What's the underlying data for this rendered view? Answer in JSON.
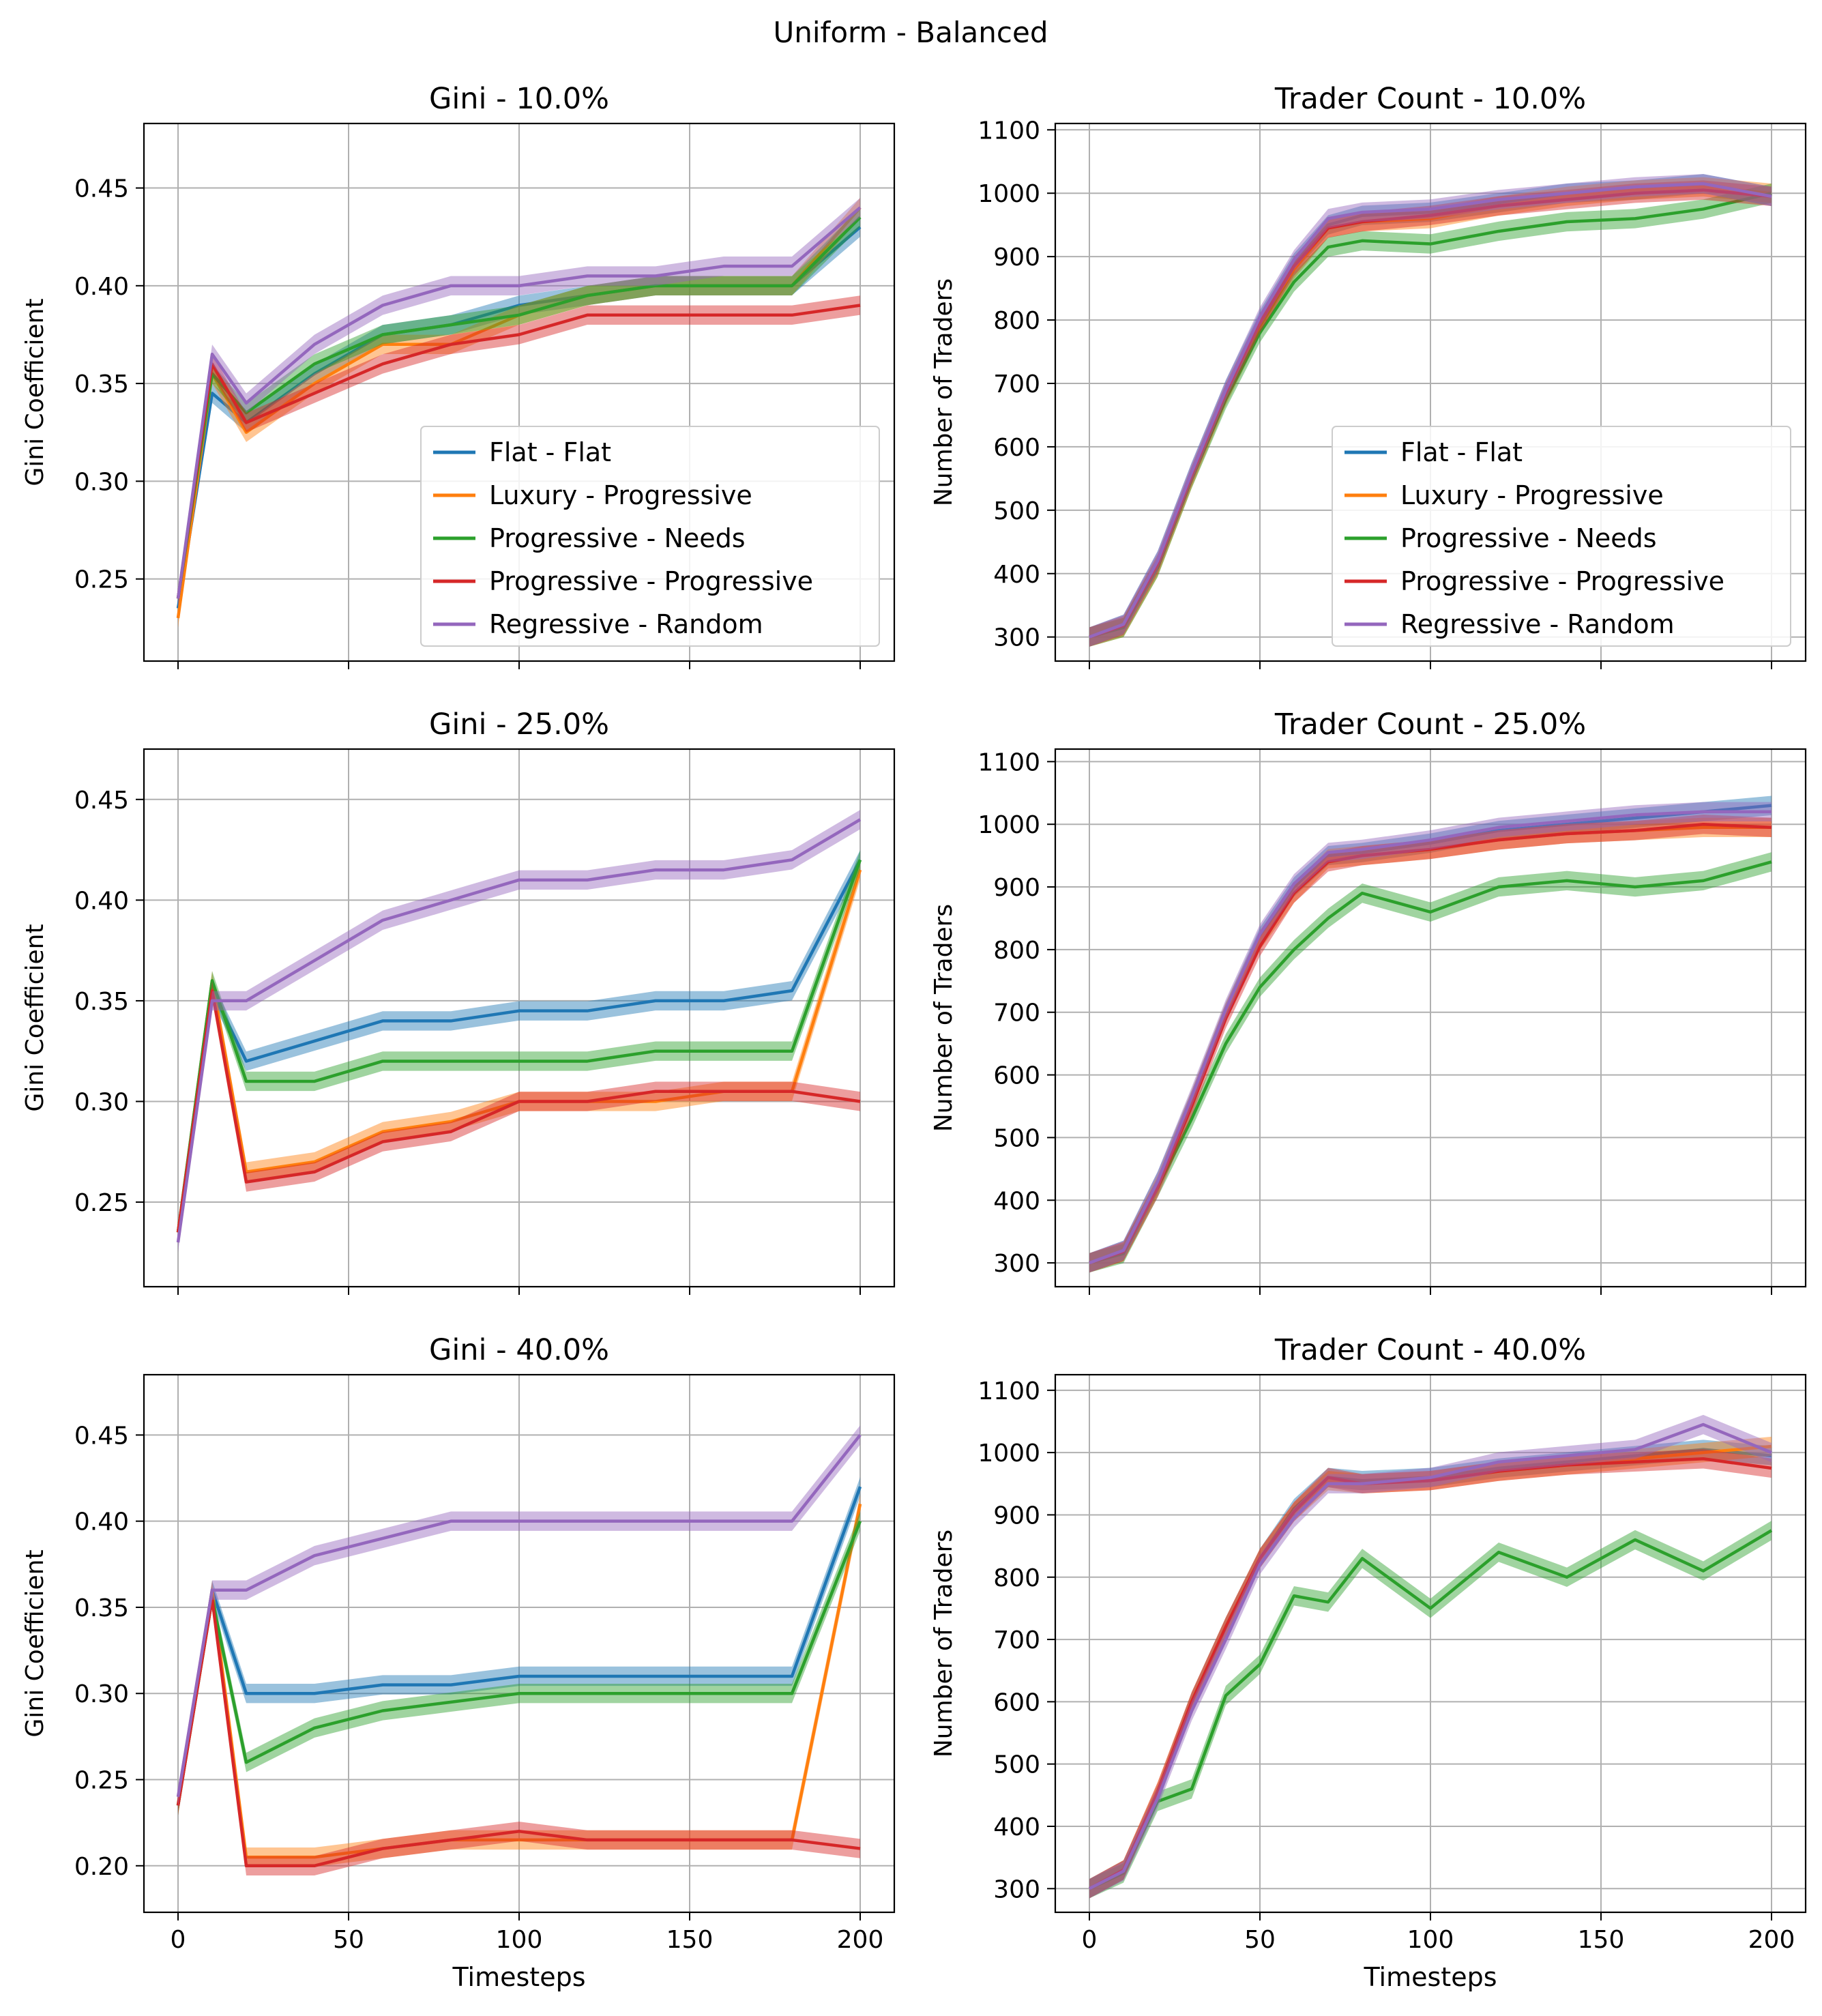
{
  "suptitle": "Uniform - Balanced",
  "colors": {
    "flat_flat": "#1f77b4",
    "luxury_progressive": "#ff7f0e",
    "progressive_needs": "#2ca02c",
    "progressive_progressive": "#d62728",
    "regressive_random": "#9467bd"
  },
  "chart_data": [
    {
      "id": "gini-10",
      "type": "line",
      "title": "Gini - 10.0%",
      "xlabel": "",
      "ylabel": "Gini Coefficient",
      "xlim": [
        -10,
        210
      ],
      "ylim": [
        0.208,
        0.483
      ],
      "xticks": [
        0,
        50,
        100,
        150,
        200
      ],
      "xtick_labels": [
        "",
        "",
        "",
        "",
        ""
      ],
      "yticks": [
        0.25,
        0.3,
        0.35,
        0.4,
        0.45
      ],
      "ytick_labels": [
        "0.25",
        "0.30",
        "0.35",
        "0.40",
        "0.45"
      ],
      "grid": true,
      "legend": "lower right",
      "x": [
        0,
        10,
        20,
        40,
        60,
        80,
        100,
        120,
        140,
        160,
        180,
        200
      ],
      "series": [
        {
          "name": "Flat - Flat",
          "color": "#1f77b4",
          "values": [
            0.235,
            0.345,
            0.33,
            0.355,
            0.375,
            0.38,
            0.39,
            0.395,
            0.4,
            0.4,
            0.4,
            0.43
          ]
        },
        {
          "name": "Luxury - Progressive",
          "color": "#ff7f0e",
          "values": [
            0.23,
            0.355,
            0.325,
            0.35,
            0.37,
            0.37,
            0.385,
            0.395,
            0.4,
            0.4,
            0.4,
            0.44
          ]
        },
        {
          "name": "Progressive - Needs",
          "color": "#2ca02c",
          "values": [
            0.24,
            0.355,
            0.335,
            0.36,
            0.375,
            0.38,
            0.385,
            0.395,
            0.4,
            0.4,
            0.4,
            0.435
          ]
        },
        {
          "name": "Progressive - Progressive",
          "color": "#d62728",
          "values": [
            0.24,
            0.36,
            0.33,
            0.345,
            0.36,
            0.37,
            0.375,
            0.385,
            0.385,
            0.385,
            0.385,
            0.39
          ]
        },
        {
          "name": "Regressive - Random",
          "color": "#9467bd",
          "values": [
            0.24,
            0.365,
            0.34,
            0.37,
            0.39,
            0.4,
            0.4,
            0.405,
            0.405,
            0.41,
            0.41,
            0.44
          ]
        }
      ]
    },
    {
      "id": "trader-10",
      "type": "line",
      "title": "Trader Count - 10.0%",
      "xlabel": "",
      "ylabel": "Number of Traders",
      "xlim": [
        -10,
        210
      ],
      "ylim": [
        262,
        1110
      ],
      "xticks": [
        0,
        50,
        100,
        150,
        200
      ],
      "xtick_labels": [
        "",
        "",
        "",
        "",
        ""
      ],
      "yticks": [
        300,
        400,
        500,
        600,
        700,
        800,
        900,
        1000,
        1100
      ],
      "ytick_labels": [
        "300",
        "400",
        "500",
        "600",
        "700",
        "800",
        "900",
        "1000",
        "1100"
      ],
      "grid": true,
      "legend": "lower right",
      "x": [
        0,
        10,
        20,
        30,
        40,
        50,
        60,
        70,
        80,
        100,
        120,
        140,
        160,
        180,
        200
      ],
      "series": [
        {
          "name": "Flat - Flat",
          "color": "#1f77b4",
          "values": [
            300,
            320,
            420,
            560,
            690,
            800,
            890,
            950,
            965,
            970,
            985,
            1000,
            1005,
            1015,
            995
          ]
        },
        {
          "name": "Luxury - Progressive",
          "color": "#ff7f0e",
          "values": [
            300,
            315,
            410,
            550,
            680,
            790,
            880,
            945,
            955,
            960,
            980,
            995,
            1005,
            1010,
            1000
          ]
        },
        {
          "name": "Progressive - Needs",
          "color": "#2ca02c",
          "values": [
            300,
            315,
            410,
            550,
            675,
            780,
            860,
            915,
            925,
            920,
            940,
            955,
            960,
            975,
            1000
          ]
        },
        {
          "name": "Progressive - Progressive",
          "color": "#d62728",
          "values": [
            300,
            318,
            415,
            555,
            685,
            795,
            885,
            945,
            955,
            965,
            980,
            990,
            1000,
            1005,
            995
          ]
        },
        {
          "name": "Regressive - Random",
          "color": "#9467bd",
          "values": [
            300,
            320,
            420,
            560,
            690,
            805,
            895,
            960,
            970,
            975,
            990,
            1000,
            1010,
            1015,
            995
          ]
        }
      ]
    },
    {
      "id": "gini-25",
      "type": "line",
      "title": "Gini - 25.0%",
      "xlabel": "",
      "ylabel": "Gini Coefficient",
      "xlim": [
        -10,
        210
      ],
      "ylim": [
        0.208,
        0.475
      ],
      "xticks": [
        0,
        50,
        100,
        150,
        200
      ],
      "xtick_labels": [
        "",
        "",
        "",
        "",
        ""
      ],
      "yticks": [
        0.25,
        0.3,
        0.35,
        0.4,
        0.45
      ],
      "ytick_labels": [
        "0.25",
        "0.30",
        "0.35",
        "0.40",
        "0.45"
      ],
      "grid": true,
      "legend": "none",
      "x": [
        0,
        10,
        20,
        40,
        60,
        80,
        100,
        120,
        140,
        160,
        180,
        200
      ],
      "series": [
        {
          "name": "Flat - Flat",
          "color": "#1f77b4",
          "values": [
            0.235,
            0.355,
            0.32,
            0.33,
            0.34,
            0.34,
            0.345,
            0.345,
            0.35,
            0.35,
            0.355,
            0.42
          ]
        },
        {
          "name": "Luxury - Progressive",
          "color": "#ff7f0e",
          "values": [
            0.235,
            0.36,
            0.265,
            0.27,
            0.285,
            0.29,
            0.3,
            0.3,
            0.3,
            0.305,
            0.305,
            0.415
          ]
        },
        {
          "name": "Progressive - Needs",
          "color": "#2ca02c",
          "values": [
            0.235,
            0.36,
            0.31,
            0.31,
            0.32,
            0.32,
            0.32,
            0.32,
            0.325,
            0.325,
            0.325,
            0.42
          ]
        },
        {
          "name": "Progressive - Progressive",
          "color": "#d62728",
          "values": [
            0.235,
            0.355,
            0.26,
            0.265,
            0.28,
            0.285,
            0.3,
            0.3,
            0.305,
            0.305,
            0.305,
            0.3
          ]
        },
        {
          "name": "Regressive - Random",
          "color": "#9467bd",
          "values": [
            0.23,
            0.35,
            0.35,
            0.37,
            0.39,
            0.4,
            0.41,
            0.41,
            0.415,
            0.415,
            0.42,
            0.44
          ]
        }
      ]
    },
    {
      "id": "trader-25",
      "type": "line",
      "title": "Trader Count - 25.0%",
      "xlabel": "",
      "ylabel": "Number of Traders",
      "xlim": [
        -10,
        210
      ],
      "ylim": [
        262,
        1120
      ],
      "xticks": [
        0,
        50,
        100,
        150,
        200
      ],
      "xtick_labels": [
        "",
        "",
        "",
        "",
        ""
      ],
      "yticks": [
        300,
        400,
        500,
        600,
        700,
        800,
        900,
        1000,
        1100
      ],
      "ytick_labels": [
        "300",
        "400",
        "500",
        "600",
        "700",
        "800",
        "900",
        "1000",
        "1100"
      ],
      "grid": true,
      "legend": "none",
      "x": [
        0,
        10,
        20,
        30,
        40,
        50,
        60,
        70,
        80,
        100,
        120,
        140,
        160,
        180,
        200
      ],
      "series": [
        {
          "name": "Flat - Flat",
          "color": "#1f77b4",
          "values": [
            300,
            320,
            430,
            560,
            700,
            820,
            900,
            950,
            955,
            970,
            990,
            1000,
            1010,
            1020,
            1030
          ]
        },
        {
          "name": "Luxury - Progressive",
          "color": "#ff7f0e",
          "values": [
            300,
            318,
            425,
            560,
            700,
            815,
            890,
            945,
            950,
            960,
            975,
            985,
            990,
            995,
            995
          ]
        },
        {
          "name": "Progressive - Needs",
          "color": "#2ca02c",
          "values": [
            300,
            315,
            420,
            530,
            650,
            740,
            800,
            850,
            890,
            860,
            900,
            910,
            900,
            910,
            940
          ]
        },
        {
          "name": "Progressive - Progressive",
          "color": "#d62728",
          "values": [
            300,
            318,
            420,
            550,
            690,
            805,
            890,
            940,
            950,
            960,
            975,
            985,
            990,
            1000,
            995
          ]
        },
        {
          "name": "Regressive - Random",
          "color": "#9467bd",
          "values": [
            300,
            320,
            430,
            565,
            705,
            825,
            905,
            955,
            960,
            975,
            995,
            1005,
            1015,
            1020,
            1020
          ]
        }
      ]
    },
    {
      "id": "gini-40",
      "type": "line",
      "title": "Gini - 40.0%",
      "xlabel": "Timesteps",
      "ylabel": "Gini Coefficient",
      "xlim": [
        -10,
        210
      ],
      "ylim": [
        0.173,
        0.485
      ],
      "xticks": [
        0,
        50,
        100,
        150,
        200
      ],
      "xtick_labels": [
        "0",
        "50",
        "100",
        "150",
        "200"
      ],
      "yticks": [
        0.2,
        0.25,
        0.3,
        0.35,
        0.4,
        0.45
      ],
      "ytick_labels": [
        "0.20",
        "0.25",
        "0.30",
        "0.35",
        "0.40",
        "0.45"
      ],
      "grid": true,
      "legend": "none",
      "x": [
        0,
        10,
        20,
        40,
        60,
        80,
        100,
        120,
        140,
        160,
        180,
        200
      ],
      "series": [
        {
          "name": "Flat - Flat",
          "color": "#1f77b4",
          "values": [
            0.235,
            0.36,
            0.3,
            0.3,
            0.305,
            0.305,
            0.31,
            0.31,
            0.31,
            0.31,
            0.31,
            0.42
          ]
        },
        {
          "name": "Luxury - Progressive",
          "color": "#ff7f0e",
          "values": [
            0.235,
            0.36,
            0.205,
            0.205,
            0.21,
            0.215,
            0.215,
            0.215,
            0.215,
            0.215,
            0.215,
            0.41
          ]
        },
        {
          "name": "Progressive - Needs",
          "color": "#2ca02c",
          "values": [
            0.235,
            0.355,
            0.26,
            0.28,
            0.29,
            0.295,
            0.3,
            0.3,
            0.3,
            0.3,
            0.3,
            0.4
          ]
        },
        {
          "name": "Progressive - Progressive",
          "color": "#d62728",
          "values": [
            0.235,
            0.355,
            0.2,
            0.2,
            0.21,
            0.215,
            0.22,
            0.215,
            0.215,
            0.215,
            0.215,
            0.21
          ]
        },
        {
          "name": "Regressive - Random",
          "color": "#9467bd",
          "values": [
            0.24,
            0.36,
            0.36,
            0.38,
            0.39,
            0.4,
            0.4,
            0.4,
            0.4,
            0.4,
            0.4,
            0.45
          ]
        }
      ]
    },
    {
      "id": "trader-40",
      "type": "line",
      "title": "Trader Count - 40.0%",
      "xlabel": "Timesteps",
      "ylabel": "Number of Traders",
      "xlim": [
        -10,
        210
      ],
      "ylim": [
        262,
        1125
      ],
      "xticks": [
        0,
        50,
        100,
        150,
        200
      ],
      "xtick_labels": [
        "0",
        "50",
        "100",
        "150",
        "200"
      ],
      "yticks": [
        300,
        400,
        500,
        600,
        700,
        800,
        900,
        1000,
        1100
      ],
      "ytick_labels": [
        "300",
        "400",
        "500",
        "600",
        "700",
        "800",
        "900",
        "1000",
        "1100"
      ],
      "grid": true,
      "legend": "none",
      "x": [
        0,
        10,
        20,
        30,
        40,
        50,
        60,
        70,
        80,
        100,
        120,
        140,
        160,
        180,
        200
      ],
      "series": [
        {
          "name": "Flat - Flat",
          "color": "#1f77b4",
          "values": [
            300,
            330,
            450,
            600,
            720,
            830,
            910,
            960,
            955,
            960,
            975,
            985,
            995,
            1005,
            995
          ]
        },
        {
          "name": "Luxury - Progressive",
          "color": "#ff7f0e",
          "values": [
            300,
            330,
            455,
            600,
            720,
            830,
            905,
            955,
            950,
            955,
            970,
            980,
            990,
            1000,
            1010
          ]
        },
        {
          "name": "Progressive - Needs",
          "color": "#2ca02c",
          "values": [
            300,
            325,
            440,
            460,
            610,
            660,
            770,
            760,
            830,
            750,
            840,
            800,
            860,
            810,
            875
          ]
        },
        {
          "name": "Progressive - Progressive",
          "color": "#d62728",
          "values": [
            300,
            330,
            455,
            600,
            720,
            830,
            905,
            960,
            950,
            955,
            970,
            980,
            985,
            990,
            975
          ]
        },
        {
          "name": "Regressive - Random",
          "color": "#9467bd",
          "values": [
            300,
            328,
            445,
            585,
            700,
            820,
            895,
            950,
            950,
            960,
            985,
            995,
            1005,
            1045,
            1000
          ]
        }
      ]
    }
  ]
}
